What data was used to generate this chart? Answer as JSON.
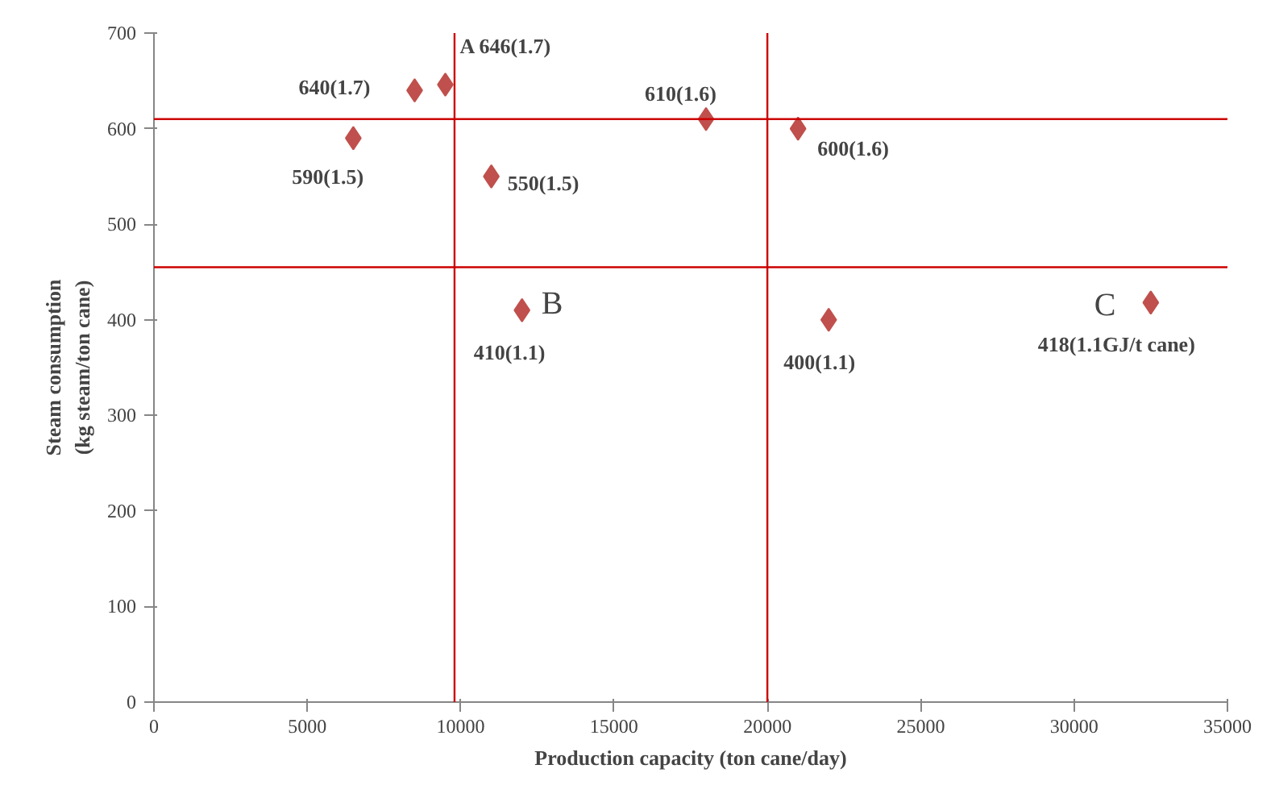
{
  "chart_data": {
    "type": "scatter",
    "xlabel": "Production capacity (ton cane/day)",
    "ylabel": "Steam consumption\n(kg steam/ton cane)",
    "x": [
      6500,
      8500,
      9500,
      11000,
      12000,
      18000,
      21000,
      22000,
      32500
    ],
    "series": [
      {
        "color": "#c0504d",
        "values": [
          590,
          640,
          646,
          550,
          410,
          610,
          600,
          400,
          418
        ]
      }
    ],
    "marker": "diamond",
    "xlim": [
      0,
      35000
    ],
    "ylim": [
      0,
      700
    ],
    "xticks": [
      0,
      5000,
      10000,
      15000,
      20000,
      25000,
      30000,
      35000
    ],
    "yticks": [
      0,
      100,
      200,
      300,
      400,
      500,
      600,
      700
    ],
    "grid": false,
    "ref_lines": [
      {
        "axis": "x",
        "value": 9800,
        "color": "#cc0000"
      },
      {
        "axis": "x",
        "value": 20000,
        "color": "#cc0000"
      },
      {
        "axis": "y",
        "value": 610,
        "color": "#cc0000"
      },
      {
        "axis": "y",
        "value": 455,
        "color": "#cc0000"
      }
    ],
    "annotations": [
      {
        "text": "590(1.5)",
        "x": 6500,
        "y": 590
      },
      {
        "text": "640(1.7)",
        "x": 8500,
        "y": 640
      },
      {
        "text": "A 646(1.7)",
        "x": 9500,
        "y": 646
      },
      {
        "text": "550(1.5)",
        "x": 11000,
        "y": 550
      },
      {
        "text": "410(1.1)",
        "x": 12000,
        "y": 410
      },
      {
        "text": "B",
        "x": 12000,
        "y": 410
      },
      {
        "text": "610(1.6)",
        "x": 18000,
        "y": 610
      },
      {
        "text": "600(1.6)",
        "x": 21000,
        "y": 600
      },
      {
        "text": "400(1.1)",
        "x": 22000,
        "y": 400
      },
      {
        "text": "C",
        "x": 32500,
        "y": 418
      },
      {
        "text": "418(1.1GJ/t cane)",
        "x": 32500,
        "y": 418
      }
    ]
  }
}
